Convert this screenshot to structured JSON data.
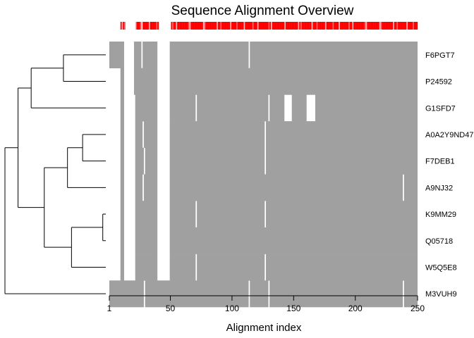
{
  "chart_data": {
    "type": "heatmap",
    "title": "Sequence Alignment Overview",
    "xlabel": "Alignment index",
    "ylabel": "",
    "xlim": [
      1,
      250
    ],
    "xticks": [
      1,
      50,
      100,
      150,
      200,
      250
    ],
    "rows": [
      "F6PGT7",
      "P24592",
      "G1SFD7",
      "A0A2Y9ND47",
      "F7DEB1",
      "A9NJ32",
      "K9MM29",
      "Q05718",
      "W5Q5E8",
      "M3VUH9"
    ],
    "colors": {
      "aligned": "#a0a0a0",
      "gap": "#ffffff",
      "conservation": "#ff0000",
      "dendrogram": "#000000"
    },
    "aligned_segments": [
      [
        [
          1,
          12
        ],
        [
          21,
          26
        ],
        [
          28,
          39
        ],
        [
          50,
          113
        ],
        [
          115,
          250
        ]
      ],
      [
        [
          10,
          12
        ],
        [
          21,
          39
        ],
        [
          50,
          250
        ]
      ],
      [
        [
          10,
          12
        ],
        [
          22,
          39
        ],
        [
          50,
          70
        ],
        [
          72,
          129
        ],
        [
          131,
          142
        ],
        [
          149,
          160
        ],
        [
          168,
          250
        ]
      ],
      [
        [
          10,
          12
        ],
        [
          22,
          27
        ],
        [
          29,
          39
        ],
        [
          50,
          126
        ],
        [
          128,
          250
        ]
      ],
      [
        [
          10,
          12
        ],
        [
          22,
          28
        ],
        [
          30,
          39
        ],
        [
          50,
          126
        ],
        [
          128,
          250
        ]
      ],
      [
        [
          10,
          12
        ],
        [
          22,
          27
        ],
        [
          29,
          39
        ],
        [
          50,
          238
        ],
        [
          240,
          250
        ]
      ],
      [
        [
          10,
          12
        ],
        [
          22,
          39
        ],
        [
          50,
          70
        ],
        [
          72,
          126
        ],
        [
          128,
          250
        ]
      ],
      [
        [
          10,
          12
        ],
        [
          22,
          39
        ],
        [
          50,
          250
        ]
      ],
      [
        [
          10,
          12
        ],
        [
          22,
          39
        ],
        [
          50,
          70
        ],
        [
          72,
          126
        ],
        [
          128,
          250
        ]
      ],
      [
        [
          1,
          28
        ],
        [
          30,
          113
        ],
        [
          115,
          129
        ],
        [
          131,
          238
        ],
        [
          240,
          250
        ]
      ]
    ],
    "conservation_segments": [
      [
        10,
        13
      ],
      [
        22,
        26
      ],
      [
        28,
        40
      ],
      [
        51,
        250
      ]
    ],
    "dendrogram": {
      "leaf_order": [
        0,
        1,
        2,
        3,
        4,
        5,
        6,
        7,
        8,
        9
      ],
      "merges": [
        {
          "left": 0,
          "right": 1,
          "height": 0.42
        },
        {
          "left": 3,
          "right": 4,
          "height": 0.23
        },
        {
          "left": 6,
          "right": 7,
          "height": 0.03
        },
        {
          "left": "m1",
          "right": 5,
          "height": 0.38
        },
        {
          "left": "m2",
          "right": 8,
          "height": 0.34
        },
        {
          "left": "m0",
          "right": 2,
          "height": 0.74
        },
        {
          "left": "m3",
          "right": "m4",
          "height": 0.61
        },
        {
          "left": "m5",
          "right": "m6",
          "height": 0.87
        },
        {
          "left": "m7",
          "right": 9,
          "height": 1.0
        }
      ]
    }
  }
}
